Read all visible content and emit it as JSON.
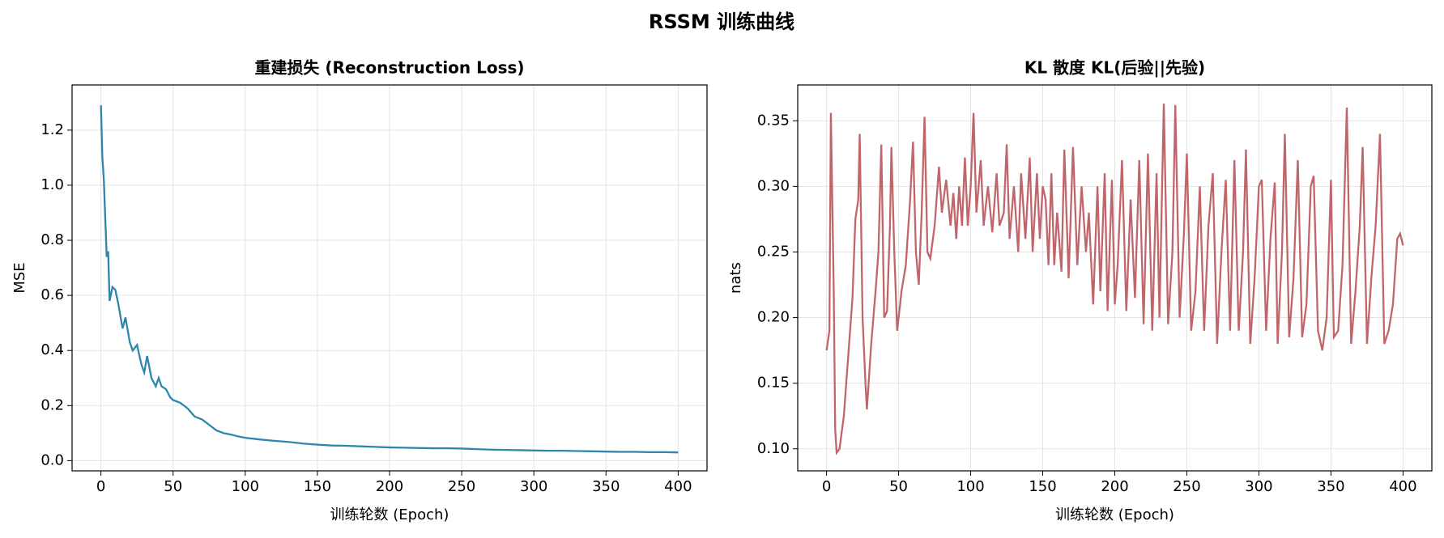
{
  "title": "RSSM 训练曲线",
  "chart_data": [
    {
      "type": "line",
      "title": "重建损失 (Reconstruction Loss)",
      "xlabel": "训练轮数 (Epoch)",
      "ylabel": "MSE",
      "color": "#2e86ab",
      "grid": true,
      "x": [
        0,
        1,
        2,
        3,
        4,
        5,
        6,
        8,
        10,
        12,
        15,
        17,
        20,
        22,
        25,
        28,
        30,
        32,
        35,
        38,
        40,
        42,
        45,
        48,
        50,
        55,
        60,
        65,
        70,
        75,
        80,
        85,
        90,
        95,
        100,
        110,
        120,
        130,
        140,
        150,
        160,
        170,
        180,
        190,
        200,
        210,
        220,
        230,
        240,
        250,
        260,
        270,
        280,
        290,
        300,
        310,
        320,
        330,
        340,
        350,
        360,
        370,
        380,
        390,
        400
      ],
      "values": [
        1.29,
        1.1,
        1.02,
        0.88,
        0.74,
        0.76,
        0.58,
        0.63,
        0.62,
        0.57,
        0.48,
        0.52,
        0.43,
        0.4,
        0.42,
        0.35,
        0.32,
        0.38,
        0.3,
        0.27,
        0.3,
        0.27,
        0.26,
        0.23,
        0.22,
        0.21,
        0.19,
        0.16,
        0.15,
        0.13,
        0.11,
        0.1,
        0.095,
        0.088,
        0.083,
        0.077,
        0.072,
        0.068,
        0.062,
        0.058,
        0.055,
        0.054,
        0.052,
        0.05,
        0.048,
        0.047,
        0.046,
        0.045,
        0.045,
        0.044,
        0.042,
        0.04,
        0.039,
        0.038,
        0.037,
        0.036,
        0.036,
        0.035,
        0.034,
        0.033,
        0.032,
        0.032,
        0.031,
        0.031,
        0.03
      ],
      "xlim": [
        -20,
        420
      ],
      "xticks": [
        0,
        50,
        100,
        150,
        200,
        250,
        300,
        350,
        400
      ],
      "ylim": [
        -0.037,
        1.364
      ],
      "yticks": [
        {
          "value": 0,
          "label": "0.0"
        },
        0.2,
        0.4,
        0.6,
        0.8,
        {
          "value": 1,
          "label": "1.0"
        },
        1.2
      ]
    },
    {
      "type": "line",
      "title": "KL 散度 KL(后验||先验)",
      "xlabel": "训练轮数 (Epoch)",
      "ylabel": "nats",
      "color": "#c0666b",
      "grid": true,
      "x": [
        0,
        2,
        3,
        5,
        6,
        7,
        9,
        12,
        15,
        18,
        20,
        22,
        23,
        25,
        27,
        28,
        31,
        34,
        36,
        38,
        40,
        42,
        44,
        45,
        47,
        49,
        52,
        55,
        58,
        60,
        62,
        64,
        66,
        68,
        70,
        72,
        75,
        78,
        80,
        83,
        86,
        88,
        90,
        92,
        94,
        96,
        98,
        100,
        102,
        104,
        107,
        109,
        112,
        115,
        118,
        120,
        123,
        125,
        127,
        130,
        133,
        135,
        138,
        141,
        143,
        146,
        148,
        150,
        152,
        154,
        156,
        158,
        160,
        163,
        165,
        168,
        171,
        174,
        177,
        180,
        182,
        185,
        188,
        190,
        193,
        195,
        198,
        200,
        202,
        205,
        208,
        211,
        214,
        217,
        220,
        223,
        226,
        229,
        231,
        234,
        237,
        240,
        242,
        245,
        248,
        250,
        253,
        256,
        259,
        262,
        265,
        268,
        271,
        274,
        277,
        280,
        283,
        286,
        289,
        291,
        294,
        297,
        300,
        302,
        305,
        308,
        311,
        313,
        316,
        318,
        321,
        324,
        327,
        330,
        333,
        336,
        338,
        341,
        344,
        347,
        350,
        352,
        355,
        358,
        361,
        364,
        367,
        370,
        372,
        375,
        378,
        381,
        384,
        387,
        390,
        393,
        396,
        398,
        400
      ],
      "values": [
        0.175,
        0.19,
        0.356,
        0.22,
        0.115,
        0.097,
        0.1,
        0.125,
        0.17,
        0.215,
        0.275,
        0.29,
        0.34,
        0.2,
        0.15,
        0.13,
        0.18,
        0.22,
        0.25,
        0.332,
        0.2,
        0.205,
        0.27,
        0.33,
        0.25,
        0.19,
        0.22,
        0.24,
        0.29,
        0.334,
        0.25,
        0.225,
        0.28,
        0.353,
        0.25,
        0.245,
        0.27,
        0.315,
        0.28,
        0.305,
        0.27,
        0.295,
        0.26,
        0.3,
        0.27,
        0.322,
        0.27,
        0.3,
        0.356,
        0.28,
        0.32,
        0.27,
        0.3,
        0.265,
        0.31,
        0.27,
        0.28,
        0.332,
        0.26,
        0.3,
        0.25,
        0.31,
        0.26,
        0.322,
        0.25,
        0.31,
        0.26,
        0.3,
        0.29,
        0.24,
        0.31,
        0.24,
        0.28,
        0.235,
        0.328,
        0.23,
        0.33,
        0.24,
        0.3,
        0.25,
        0.28,
        0.21,
        0.3,
        0.22,
        0.31,
        0.205,
        0.305,
        0.21,
        0.24,
        0.32,
        0.205,
        0.29,
        0.215,
        0.32,
        0.195,
        0.325,
        0.19,
        0.31,
        0.2,
        0.363,
        0.195,
        0.25,
        0.362,
        0.2,
        0.265,
        0.325,
        0.19,
        0.22,
        0.3,
        0.19,
        0.27,
        0.31,
        0.18,
        0.25,
        0.305,
        0.19,
        0.32,
        0.19,
        0.25,
        0.328,
        0.18,
        0.23,
        0.3,
        0.305,
        0.19,
        0.26,
        0.303,
        0.18,
        0.25,
        0.34,
        0.185,
        0.23,
        0.32,
        0.185,
        0.21,
        0.3,
        0.308,
        0.19,
        0.175,
        0.2,
        0.305,
        0.185,
        0.19,
        0.24,
        0.36,
        0.18,
        0.22,
        0.27,
        0.33,
        0.18,
        0.23,
        0.27,
        0.34,
        0.18,
        0.19,
        0.21,
        0.26,
        0.264,
        0.255
      ],
      "xlim": [
        -20,
        420
      ],
      "xticks": [
        0,
        50,
        100,
        150,
        200,
        250,
        300,
        350,
        400
      ],
      "ylim": [
        0.0832,
        0.3773
      ],
      "yticks": [
        {
          "value": 0.1,
          "label": "0.10"
        },
        0.15,
        {
          "value": 0.2,
          "label": "0.20"
        },
        0.25,
        {
          "value": 0.3,
          "label": "0.30"
        },
        0.35
      ]
    }
  ]
}
